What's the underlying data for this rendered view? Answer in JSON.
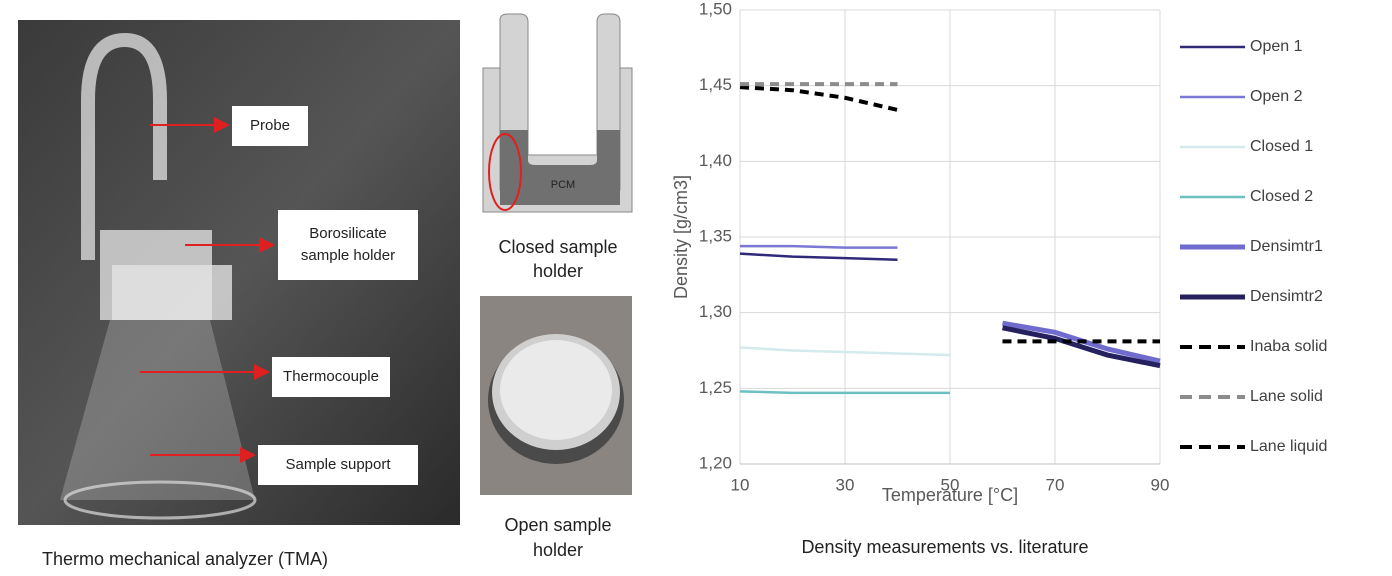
{
  "photo": {
    "labels": [
      "Probe",
      [
        "Borosilicate",
        "sample holder"
      ],
      "Thermocouple",
      "Sample support"
    ],
    "caption": "Thermo mechanical analyzer (TMA)"
  },
  "diagram": {
    "inner_label": "PCM",
    "caption": [
      "Closed sample",
      "holder"
    ]
  },
  "open_photo": {
    "caption": [
      "Open sample",
      "holder"
    ]
  },
  "chart_data": {
    "type": "line",
    "title": "Density measurements vs. literature",
    "x_label": "Temperature [°C]",
    "y_label": "Density [g/cm3]",
    "xlim": [
      10,
      90
    ],
    "xticks": [
      10,
      30,
      50,
      70,
      90
    ],
    "ylim": [
      1.2,
      1.5
    ],
    "yticks": [
      {
        "value": 1.2,
        "label": "1,20"
      },
      {
        "value": 1.25,
        "label": "1,25"
      },
      {
        "value": 1.3,
        "label": "1,30"
      },
      {
        "value": 1.35,
        "label": "1,35"
      },
      {
        "value": 1.4,
        "label": "1,40"
      },
      {
        "value": 1.45,
        "label": "1,45"
      },
      {
        "value": 1.5,
        "label": "1,50"
      }
    ],
    "grid": true,
    "legend": "right",
    "series": [
      {
        "name": "Open 1",
        "color": "#2e2a78",
        "x": [
          10,
          20,
          30,
          40
        ],
        "values": [
          1.339,
          1.337,
          1.336,
          1.335
        ]
      },
      {
        "name": "Open 2",
        "color": "#7b78d4",
        "x": [
          10,
          20,
          30,
          40
        ],
        "values": [
          1.344,
          1.344,
          1.343,
          1.343
        ]
      },
      {
        "name": "Closed 1",
        "color": "#d4eaec",
        "x": [
          10,
          20,
          30,
          40,
          50
        ],
        "values": [
          1.277,
          1.275,
          1.274,
          1.273,
          1.272
        ]
      },
      {
        "name": "Closed 2",
        "color": "#6cc0bf",
        "x": [
          10,
          20,
          30,
          40,
          50
        ],
        "values": [
          1.248,
          1.247,
          1.247,
          1.247,
          1.247
        ]
      },
      {
        "name": "Densimtr1",
        "color": "#6f6ccd",
        "thick": true,
        "x": [
          60,
          70,
          80,
          90
        ],
        "values": [
          1.293,
          1.287,
          1.276,
          1.268
        ]
      },
      {
        "name": "Densimtr2",
        "color": "#24215e",
        "thick": true,
        "x": [
          60,
          70,
          80,
          90
        ],
        "values": [
          1.29,
          1.283,
          1.272,
          1.265
        ]
      },
      {
        "name": "Inaba solid",
        "color": "#000000",
        "dashed": true,
        "x": [
          10,
          20,
          30,
          40
        ],
        "values": [
          1.449,
          1.447,
          1.442,
          1.434
        ]
      },
      {
        "name": "Lane solid",
        "color": "#8c8c8c",
        "dashed": true,
        "x": [
          10,
          20,
          30,
          40
        ],
        "values": [
          1.451,
          1.451,
          1.451,
          1.451
        ]
      },
      {
        "name": "Lane liquid",
        "color": "#000000",
        "dashed": true,
        "x": [
          60,
          70,
          80,
          90
        ],
        "values": [
          1.281,
          1.281,
          1.281,
          1.281
        ]
      }
    ]
  }
}
